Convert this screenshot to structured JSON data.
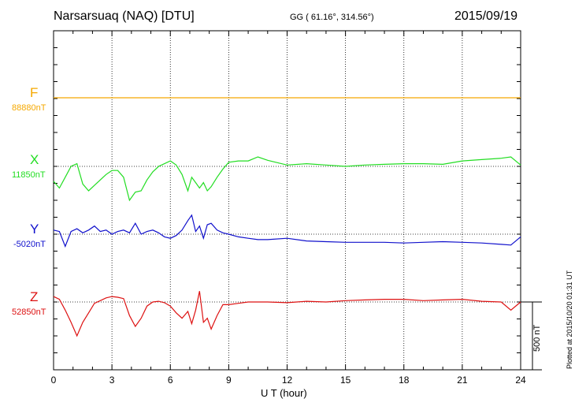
{
  "header": {
    "station": "Narsarsuaq (NAQ)  [DTU]",
    "coords": "GG ( 61.16°, 314.56°)",
    "date": "2015/09/19"
  },
  "footer": {
    "plotted": "Plotted at 2015/10/20 01:31  UT",
    "scale_label": "500 nT"
  },
  "colors": {
    "F": "#f5a800",
    "X": "#22dd22",
    "Y": "#1010cc",
    "Z": "#dd1111"
  },
  "chart_data": {
    "type": "line",
    "title": "Narsarsuaq (NAQ)  [DTU]",
    "xlabel": "U T (hour)",
    "xlim": [
      0,
      24
    ],
    "xticks": [
      0,
      3,
      6,
      9,
      12,
      15,
      18,
      21,
      24
    ],
    "grid": true,
    "scale_nT": 500,
    "components": [
      {
        "name": "F",
        "baseline": "88880nT",
        "x": [
          0,
          24
        ],
        "y": [
          0,
          0
        ]
      },
      {
        "name": "X",
        "baseline": "11850nT",
        "x": [
          0,
          0.3,
          0.6,
          0.9,
          1.2,
          1.5,
          1.8,
          2.1,
          2.4,
          2.7,
          3.0,
          3.3,
          3.6,
          3.9,
          4.2,
          4.5,
          4.8,
          5.1,
          5.4,
          5.7,
          6.0,
          6.3,
          6.6,
          6.9,
          7.1,
          7.3,
          7.5,
          7.7,
          7.9,
          8.1,
          8.4,
          8.7,
          9.0,
          9.5,
          10.0,
          10.5,
          11.0,
          12.0,
          13.0,
          14.0,
          15.0,
          16.0,
          17.0,
          18.0,
          19.0,
          20.0,
          21.0,
          22.0,
          23.0,
          23.5,
          24.0
        ],
        "y": [
          -110,
          -160,
          -80,
          0,
          20,
          -130,
          -180,
          -140,
          -100,
          -60,
          -30,
          -30,
          -80,
          -250,
          -190,
          -180,
          -100,
          -40,
          0,
          20,
          40,
          10,
          -60,
          -180,
          -80,
          -120,
          -160,
          -120,
          -180,
          -150,
          -80,
          -20,
          30,
          40,
          40,
          70,
          45,
          10,
          20,
          10,
          0,
          10,
          15,
          20,
          20,
          15,
          40,
          50,
          60,
          70,
          10
        ]
      },
      {
        "name": "Y",
        "baseline": "-5020nT",
        "x": [
          0,
          0.3,
          0.6,
          0.9,
          1.2,
          1.5,
          1.8,
          2.1,
          2.4,
          2.7,
          3.0,
          3.3,
          3.6,
          3.9,
          4.2,
          4.5,
          4.8,
          5.1,
          5.4,
          5.7,
          6.0,
          6.3,
          6.6,
          6.9,
          7.1,
          7.3,
          7.5,
          7.7,
          7.9,
          8.1,
          8.4,
          8.7,
          9.0,
          9.5,
          10.0,
          10.5,
          11.0,
          12.0,
          13.0,
          14.0,
          15.0,
          16.0,
          17.0,
          18.0,
          19.0,
          20.0,
          21.0,
          22.0,
          23.0,
          23.5,
          24.0
        ],
        "y": [
          30,
          20,
          -90,
          20,
          40,
          10,
          30,
          60,
          20,
          30,
          0,
          20,
          30,
          10,
          80,
          0,
          20,
          30,
          10,
          -20,
          -30,
          -10,
          30,
          100,
          140,
          20,
          60,
          -30,
          70,
          80,
          30,
          10,
          0,
          -20,
          -30,
          -40,
          -40,
          -30,
          -50,
          -55,
          -60,
          -60,
          -60,
          -65,
          -60,
          -55,
          -60,
          -65,
          -75,
          -80,
          -20
        ]
      },
      {
        "name": "Z",
        "baseline": "52850nT",
        "x": [
          0,
          0.3,
          0.6,
          0.9,
          1.2,
          1.5,
          1.8,
          2.1,
          2.4,
          2.7,
          3.0,
          3.3,
          3.6,
          3.9,
          4.2,
          4.5,
          4.8,
          5.1,
          5.4,
          5.7,
          6.0,
          6.3,
          6.6,
          6.9,
          7.1,
          7.3,
          7.5,
          7.7,
          7.9,
          8.1,
          8.4,
          8.7,
          9.0,
          9.5,
          10.0,
          10.5,
          11.0,
          12.0,
          13.0,
          14.0,
          15.0,
          16.0,
          17.0,
          18.0,
          19.0,
          20.0,
          21.0,
          22.0,
          23.0,
          23.5,
          24.0
        ],
        "y": [
          40,
          20,
          -60,
          -150,
          -250,
          -150,
          -80,
          -10,
          10,
          30,
          40,
          35,
          25,
          -100,
          -180,
          -120,
          -30,
          0,
          5,
          -5,
          -30,
          -80,
          -120,
          -70,
          -160,
          -60,
          80,
          -150,
          -120,
          -200,
          -100,
          -20,
          -20,
          -10,
          0,
          0,
          0,
          -5,
          5,
          0,
          10,
          15,
          20,
          20,
          10,
          15,
          20,
          5,
          0,
          -60,
          0
        ]
      }
    ]
  }
}
